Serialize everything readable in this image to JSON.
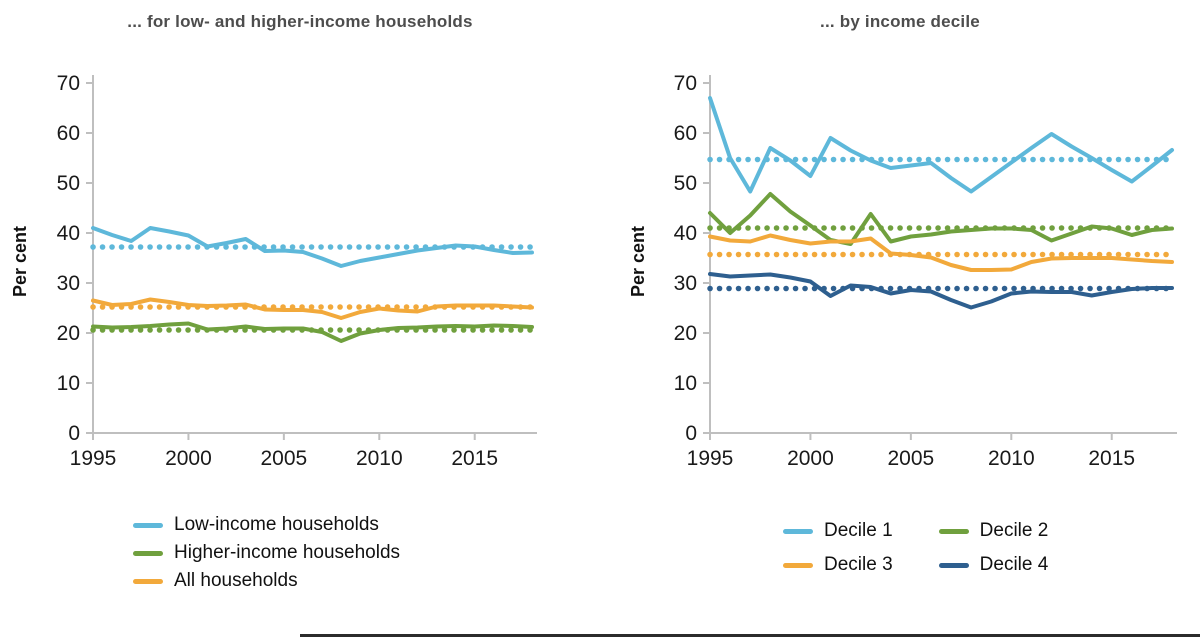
{
  "chart_data": [
    {
      "type": "line",
      "title": "... for low- and higher-income households",
      "ylabel": "Per cent",
      "ylim": [
        0,
        70
      ],
      "yticks": [
        0,
        10,
        20,
        30,
        40,
        50,
        60,
        70
      ],
      "xticks": [
        1995,
        2000,
        2005,
        2010,
        2015
      ],
      "grid": false,
      "legend_position": "bottom-left",
      "x": [
        1995,
        1996,
        1997,
        1998,
        1999,
        2000,
        2001,
        2002,
        2003,
        2004,
        2005,
        2006,
        2007,
        2008,
        2009,
        2010,
        2011,
        2012,
        2013,
        2014,
        2015,
        2016,
        2017,
        2018
      ],
      "series": [
        {
          "name": "Low-income households",
          "color": "#5EB8DA",
          "style": "solid",
          "average_dotted_line": 37.2,
          "values": [
            41.0,
            39.6,
            38.4,
            41.0,
            40.3,
            39.5,
            37.3,
            38.0,
            38.8,
            36.4,
            36.5,
            36.2,
            34.9,
            33.4,
            34.4,
            35.1,
            35.8,
            36.5,
            37.0,
            37.5,
            37.3,
            36.6,
            36.0,
            36.1
          ]
        },
        {
          "name": "Higher-income households",
          "color": "#70A03E",
          "style": "solid",
          "average_dotted_line": 20.6,
          "values": [
            21.3,
            21.1,
            21.2,
            21.4,
            21.7,
            21.9,
            20.7,
            20.9,
            21.3,
            20.8,
            20.9,
            20.9,
            20.2,
            18.4,
            19.9,
            20.6,
            21.0,
            21.1,
            21.3,
            21.4,
            21.3,
            21.5,
            21.4,
            21.2
          ]
        },
        {
          "name": "All households",
          "color": "#F2A93B",
          "style": "solid",
          "average_dotted_line": 25.2,
          "values": [
            26.5,
            25.6,
            25.8,
            26.7,
            26.2,
            25.6,
            25.4,
            25.5,
            25.7,
            24.7,
            24.6,
            24.6,
            24.2,
            23.0,
            24.2,
            24.9,
            24.5,
            24.3,
            25.3,
            25.5,
            25.5,
            25.5,
            25.3,
            25.1
          ]
        }
      ]
    },
    {
      "type": "line",
      "title": "... by income decile",
      "ylabel": "Per cent",
      "ylim": [
        0,
        70
      ],
      "yticks": [
        0,
        10,
        20,
        30,
        40,
        50,
        60,
        70
      ],
      "xticks": [
        1995,
        2000,
        2005,
        2010,
        2015
      ],
      "grid": false,
      "legend_position": "bottom-grid-2x2",
      "x": [
        1995,
        1996,
        1997,
        1998,
        1999,
        2000,
        2001,
        2002,
        2003,
        2004,
        2005,
        2006,
        2007,
        2008,
        2009,
        2010,
        2011,
        2012,
        2013,
        2014,
        2015,
        2016,
        2017,
        2018
      ],
      "series": [
        {
          "name": "Decile 1",
          "color": "#5EB8DA",
          "style": "solid",
          "average_dotted_line": 54.7,
          "values": [
            67.0,
            55.0,
            48.3,
            57.0,
            54.5,
            51.4,
            59.0,
            56.5,
            54.5,
            53.0,
            53.5,
            54.0,
            51.0,
            48.3,
            51.2,
            54.1,
            57.0,
            59.8,
            57.3,
            55.0,
            52.6,
            50.3,
            53.4,
            56.6
          ]
        },
        {
          "name": "Decile 2",
          "color": "#70A03E",
          "style": "solid",
          "average_dotted_line": 41.0,
          "values": [
            44.0,
            40.0,
            43.5,
            47.8,
            44.3,
            41.5,
            38.6,
            37.8,
            43.8,
            38.3,
            39.3,
            39.7,
            40.3,
            40.6,
            40.9,
            40.9,
            40.6,
            38.5,
            39.9,
            41.3,
            40.9,
            39.6,
            40.6,
            40.9
          ]
        },
        {
          "name": "Decile 3",
          "color": "#F2A93B",
          "style": "solid",
          "average_dotted_line": 35.7,
          "values": [
            39.3,
            38.5,
            38.3,
            39.5,
            38.6,
            37.9,
            38.3,
            38.3,
            38.9,
            35.9,
            35.6,
            35.1,
            33.6,
            32.6,
            32.6,
            32.7,
            34.2,
            34.9,
            35.0,
            35.0,
            35.0,
            34.7,
            34.4,
            34.2
          ]
        },
        {
          "name": "Decile 4",
          "color": "#2E5F8F",
          "style": "solid",
          "average_dotted_line": 28.9,
          "values": [
            31.8,
            31.3,
            31.5,
            31.7,
            31.1,
            30.3,
            27.4,
            29.5,
            29.2,
            27.9,
            28.6,
            28.3,
            26.6,
            25.1,
            26.3,
            27.9,
            28.3,
            28.2,
            28.2,
            27.5,
            28.2,
            28.8,
            29.0,
            29.0
          ]
        }
      ]
    }
  ],
  "style": {
    "axis_color": "#bfbfbf",
    "tick_label_color": "#1a1a1a",
    "title_color": "#4d4d4d"
  }
}
